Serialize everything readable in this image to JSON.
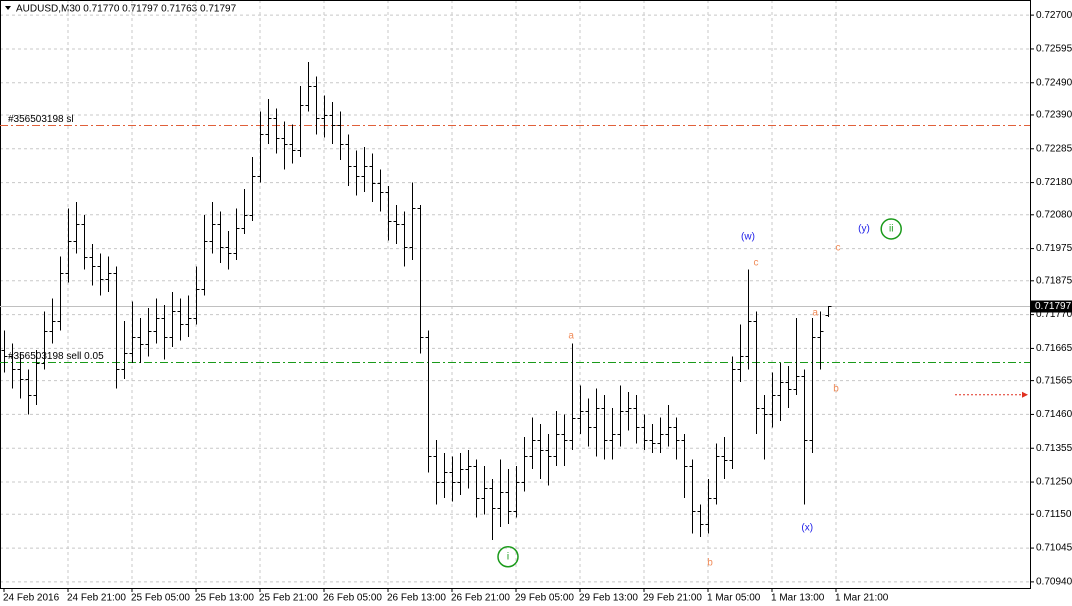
{
  "chart_data": {
    "type": "ohlc",
    "title": "AUDUSD,M30  0.71770 0.71797 0.71763 0.71797",
    "color": "#000000",
    "open": [
      0.7166,
      0.7164,
      0.716,
      0.7157,
      0.7152,
      0.7162,
      0.7172,
      0.7175,
      0.719,
      0.72,
      0.7205,
      0.7195,
      0.7192,
      0.7188,
      0.719,
      0.716,
      0.7165,
      0.717,
      0.7168,
      0.7172,
      0.7176,
      0.717,
      0.7178,
      0.7174,
      0.7176,
      0.7185,
      0.72,
      0.7205,
      0.7198,
      0.7196,
      0.7204,
      0.7208,
      0.722,
      0.7233,
      0.7238,
      0.7232,
      0.723,
      0.7228,
      0.7242,
      0.7248,
      0.7238,
      0.7239,
      0.7236,
      0.723,
      0.7223,
      0.722,
      0.7223,
      0.7218,
      0.7215,
      0.7206,
      0.7205,
      0.7198,
      0.721,
      0.717,
      0.7133,
      0.7125,
      0.7128,
      0.7125,
      0.7129,
      0.713,
      0.712,
      0.7123,
      0.7117,
      0.7122,
      0.7116,
      0.7125,
      0.7133,
      0.7138,
      0.7135,
      0.7133,
      0.714,
      0.7138,
      0.7145,
      0.7147,
      0.7142,
      0.7148,
      0.7138,
      0.714,
      0.7147,
      0.7148,
      0.7142,
      0.7138,
      0.7137,
      0.714,
      0.7142,
      0.7138,
      0.713,
      0.7116,
      0.7112,
      0.712,
      0.7133,
      0.7132,
      0.716,
      0.7164,
      0.7175,
      0.7148,
      0.7146,
      0.7152,
      0.7156,
      0.7154,
      0.7158,
      0.7138,
      0.717,
      0.7177
    ],
    "high": [
      0.7172,
      0.7168,
      0.7165,
      0.716,
      0.7166,
      0.7178,
      0.7182,
      0.7195,
      0.721,
      0.7212,
      0.7208,
      0.7199,
      0.7196,
      0.7195,
      0.7192,
      0.7175,
      0.7181,
      0.7176,
      0.7179,
      0.7182,
      0.718,
      0.7184,
      0.7182,
      0.7183,
      0.7192,
      0.7208,
      0.7212,
      0.7209,
      0.7203,
      0.721,
      0.7216,
      0.7226,
      0.724,
      0.7244,
      0.7241,
      0.7237,
      0.7236,
      0.7248,
      0.72555,
      0.7251,
      0.7245,
      0.7243,
      0.724,
      0.7233,
      0.7228,
      0.7229,
      0.7227,
      0.7222,
      0.7217,
      0.7211,
      0.7209,
      0.7218,
      0.7211,
      0.7172,
      0.7138,
      0.7134,
      0.7133,
      0.7134,
      0.7135,
      0.7132,
      0.713,
      0.7126,
      0.7132,
      0.7129,
      0.713,
      0.7139,
      0.7145,
      0.7143,
      0.714,
      0.7147,
      0.7146,
      0.7168,
      0.7155,
      0.7151,
      0.7154,
      0.7152,
      0.7148,
      0.7155,
      0.7153,
      0.7152,
      0.7146,
      0.7143,
      0.7145,
      0.7149,
      0.7145,
      0.714,
      0.7132,
      0.7118,
      0.7126,
      0.7137,
      0.7139,
      0.7164,
      0.7174,
      0.7191,
      0.7178,
      0.7152,
      0.7159,
      0.7162,
      0.7161,
      0.7176,
      0.716,
      0.7176,
      0.7178,
      0.71797
    ],
    "low": [
      0.7159,
      0.7154,
      0.7151,
      0.7146,
      0.7149,
      0.716,
      0.7168,
      0.7172,
      0.7187,
      0.7196,
      0.7191,
      0.7186,
      0.7183,
      0.7184,
      0.7154,
      0.7157,
      0.7162,
      0.7162,
      0.7164,
      0.7168,
      0.7163,
      0.7167,
      0.7169,
      0.717,
      0.7174,
      0.7183,
      0.7196,
      0.7193,
      0.7191,
      0.7194,
      0.7202,
      0.7206,
      0.7218,
      0.723,
      0.7227,
      0.7222,
      0.7224,
      0.7226,
      0.724,
      0.7233,
      0.7232,
      0.723,
      0.7225,
      0.7217,
      0.7214,
      0.7215,
      0.7212,
      0.7209,
      0.72,
      0.7199,
      0.7192,
      0.7194,
      0.7165,
      0.7128,
      0.7118,
      0.712,
      0.7119,
      0.7121,
      0.7123,
      0.7114,
      0.7115,
      0.7107,
      0.7111,
      0.7112,
      0.7114,
      0.7122,
      0.7129,
      0.7126,
      0.7124,
      0.713,
      0.713,
      0.7135,
      0.714,
      0.7136,
      0.7133,
      0.7132,
      0.7132,
      0.7136,
      0.7141,
      0.7137,
      0.7135,
      0.7134,
      0.7134,
      0.7136,
      0.7132,
      0.712,
      0.7109,
      0.7108,
      0.7109,
      0.7118,
      0.7126,
      0.7129,
      0.7156,
      0.716,
      0.714,
      0.7132,
      0.7142,
      0.7144,
      0.7148,
      0.7152,
      0.7118,
      0.7134,
      0.716,
      0.71763
    ],
    "close": [
      0.7164,
      0.716,
      0.7157,
      0.7152,
      0.7162,
      0.7172,
      0.7175,
      0.719,
      0.72,
      0.7205,
      0.7195,
      0.7192,
      0.7188,
      0.719,
      0.716,
      0.7165,
      0.717,
      0.7168,
      0.7172,
      0.7176,
      0.717,
      0.7178,
      0.7174,
      0.7176,
      0.7185,
      0.72,
      0.7205,
      0.7198,
      0.7196,
      0.7204,
      0.7208,
      0.722,
      0.7233,
      0.7238,
      0.7232,
      0.723,
      0.7228,
      0.7242,
      0.7248,
      0.7238,
      0.7239,
      0.7236,
      0.723,
      0.7223,
      0.722,
      0.7223,
      0.7218,
      0.7215,
      0.7206,
      0.7205,
      0.7198,
      0.721,
      0.717,
      0.7133,
      0.7125,
      0.7128,
      0.7125,
      0.7129,
      0.713,
      0.712,
      0.7123,
      0.7117,
      0.7122,
      0.7116,
      0.7125,
      0.7133,
      0.7138,
      0.7135,
      0.7133,
      0.714,
      0.7138,
      0.7145,
      0.7147,
      0.7142,
      0.7148,
      0.7138,
      0.714,
      0.7147,
      0.7148,
      0.7142,
      0.7138,
      0.7137,
      0.714,
      0.7142,
      0.7138,
      0.713,
      0.7116,
      0.7112,
      0.712,
      0.7133,
      0.7132,
      0.716,
      0.7164,
      0.7175,
      0.7148,
      0.7146,
      0.7152,
      0.7156,
      0.7154,
      0.7158,
      0.7138,
      0.717,
      0.7172,
      0.71797
    ],
    "xlim": [
      -0.5,
      128.25
    ],
    "xticks": [
      {
        "value": 0,
        "label": "24 Feb 2016"
      },
      {
        "value": 8,
        "label": "24 Feb 21:00"
      },
      {
        "value": 16,
        "label": "25 Feb 05:00"
      },
      {
        "value": 24,
        "label": "25 Feb 13:00"
      },
      {
        "value": 32,
        "label": "25 Feb 21:00"
      },
      {
        "value": 40,
        "label": "26 Feb 05:00"
      },
      {
        "value": 48,
        "label": "26 Feb 13:00"
      },
      {
        "value": 56,
        "label": "26 Feb 21:00"
      },
      {
        "value": 64,
        "label": "29 Feb 05:00"
      },
      {
        "value": 72,
        "label": "29 Feb 13:00"
      },
      {
        "value": 80,
        "label": "29 Feb 21:00"
      },
      {
        "value": 88,
        "label": "1 Mar 05:00"
      },
      {
        "value": 96,
        "label": "1 Mar 13:00"
      },
      {
        "value": 104,
        "label": "1 Mar 21:00"
      }
    ],
    "ylim": [
      0.70921,
      0.72747
    ],
    "yticks": [
      {
        "value": 0.727,
        "label": "0.72700"
      },
      0.72595,
      {
        "value": 0.7249,
        "label": "0.72490"
      },
      {
        "value": 0.7239,
        "label": "0.72390"
      },
      0.72285,
      {
        "value": 0.7218,
        "label": "0.72180"
      },
      {
        "value": 0.7208,
        "label": "0.72080"
      },
      0.71975,
      0.71875,
      {
        "value": 0.7177,
        "label": "0.71770"
      },
      0.71665,
      0.71565,
      {
        "value": 0.7146,
        "label": "0.71460"
      },
      0.71355,
      {
        "value": 0.7125,
        "label": "0.71250"
      },
      {
        "value": 0.7115,
        "label": "0.71150"
      },
      0.71045,
      {
        "value": 0.7094,
        "label": "0.70940"
      }
    ],
    "grid": true,
    "current_price": 0.71797,
    "levels": [
      {
        "name": "#356503198 sl",
        "value": 0.72359,
        "color": "#e0603a"
      },
      {
        "name": "#356503198 sell 0.05",
        "value": 0.71623,
        "color": "#1a9a1a"
      }
    ],
    "arrow_price": 0.71521,
    "annotations": [
      {
        "text": "(w)",
        "x": 93,
        "y": 0.72011,
        "color": "#1c1ce8",
        "circled": false
      },
      {
        "text": "c",
        "x": 94,
        "y": 0.71931,
        "color": "#f08c5a",
        "circled": false
      },
      {
        "text": "(y)",
        "x": 107.5,
        "y": 0.72036,
        "color": "#1c1ce8",
        "circled": false
      },
      {
        "text": "ii",
        "x": 110.9,
        "y": 0.72036,
        "color": "#1a9a1a",
        "circled": true
      },
      {
        "text": "c",
        "x": 104.25,
        "y": 0.71977,
        "color": "#f08c5a",
        "circled": false
      },
      {
        "text": "a",
        "x": 101.4,
        "y": 0.71775,
        "color": "#f08c5a",
        "circled": false
      },
      {
        "text": "b",
        "x": 104,
        "y": 0.71539,
        "color": "#f08c5a",
        "circled": false
      },
      {
        "text": "a",
        "x": 70.9,
        "y": 0.71704,
        "color": "#f08c5a",
        "circled": false
      },
      {
        "text": "i",
        "x": 63,
        "y": 0.71018,
        "color": "#1a9a1a",
        "circled": true
      },
      {
        "text": "b",
        "x": 88.25,
        "y": 0.70999,
        "color": "#f08c5a",
        "circled": false
      },
      {
        "text": "(x)",
        "x": 100.4,
        "y": 0.71108,
        "color": "#1c1ce8",
        "circled": false
      }
    ]
  }
}
